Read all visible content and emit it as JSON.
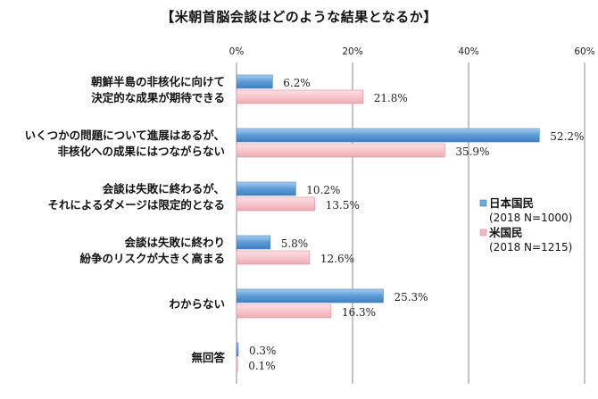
{
  "chart_data": {
    "type": "bar",
    "orientation": "horizontal",
    "title": "【米朝首脳会談はどのような結果となるか】",
    "categories": [
      [
        "朝鮮半島の非核化に向けて",
        "決定的な成果が期待できる"
      ],
      [
        "いくつかの問題について進展はあるが、",
        "非核化への成果にはつながらない"
      ],
      [
        "会談は失敗に終わるが、",
        "それによるダメージは限定的となる"
      ],
      [
        "会談は失敗に終わり",
        "紛争のリスクが大きく高まる"
      ],
      [
        "わからない"
      ],
      [
        "無回答"
      ]
    ],
    "series": [
      {
        "name": "日本国民",
        "note": "(2018 N=1000)",
        "color": "#6fa8dc",
        "values": [
          6.2,
          52.2,
          10.2,
          5.8,
          25.3,
          0.3
        ],
        "labels": [
          "6.2%",
          "52.2%",
          "10.2%",
          "5.8%",
          "25.3%",
          "0.3%"
        ]
      },
      {
        "name": "米国民",
        "note": "(2018 N=1215)",
        "color": "#f2b8bf",
        "values": [
          21.8,
          35.9,
          13.5,
          12.6,
          16.3,
          0.1
        ],
        "labels": [
          "21.8%",
          "35.9%",
          "13.5%",
          "12.6%",
          "16.3%",
          "0.1%"
        ]
      }
    ],
    "xlim": [
      0,
      60
    ],
    "xticks": [
      "0%",
      "20%",
      "40%",
      "60%"
    ],
    "xtick_values": [
      0,
      20,
      40,
      60
    ],
    "grid": true,
    "legend": "right"
  }
}
